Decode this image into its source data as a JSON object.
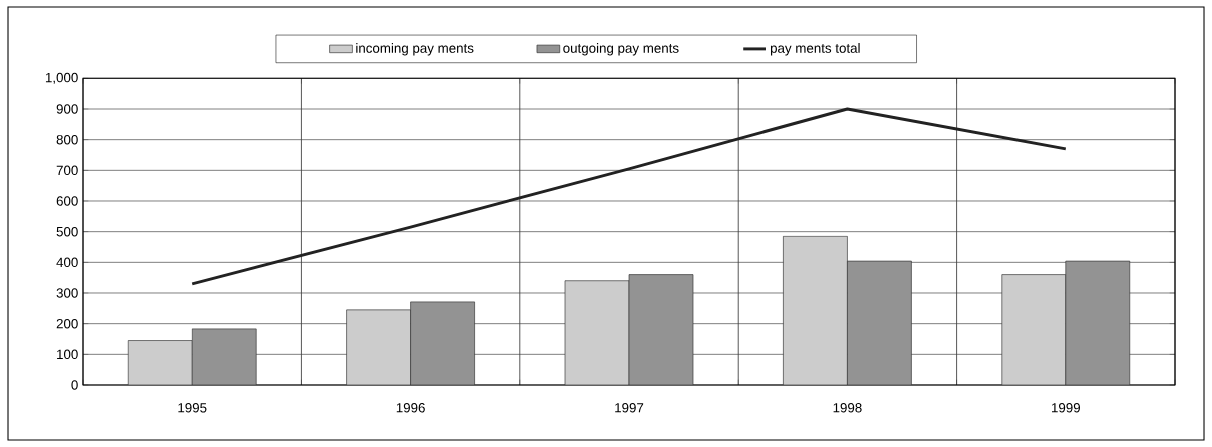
{
  "chart_data": {
    "type": "bar",
    "categories": [
      "1995",
      "1996",
      "1997",
      "1998",
      "1999"
    ],
    "series": [
      {
        "name": "incoming pay ments",
        "color": "#cccccc",
        "values": [
          145,
          245,
          340,
          485,
          360
        ]
      },
      {
        "name": "outgoing pay ments",
        "color": "#939393",
        "values": [
          183,
          271,
          360,
          404,
          404
        ]
      },
      {
        "name": "pay ments total",
        "type": "line",
        "color": "#222222",
        "values": [
          330,
          515,
          705,
          900,
          770
        ]
      }
    ],
    "ylim": [
      0,
      1000
    ],
    "yticks": [
      0,
      100,
      200,
      300,
      400,
      500,
      600,
      700,
      800,
      900,
      {
        "value": 1000,
        "label": "1,000"
      }
    ],
    "grid": true,
    "legend": "top",
    "marker": "none"
  }
}
